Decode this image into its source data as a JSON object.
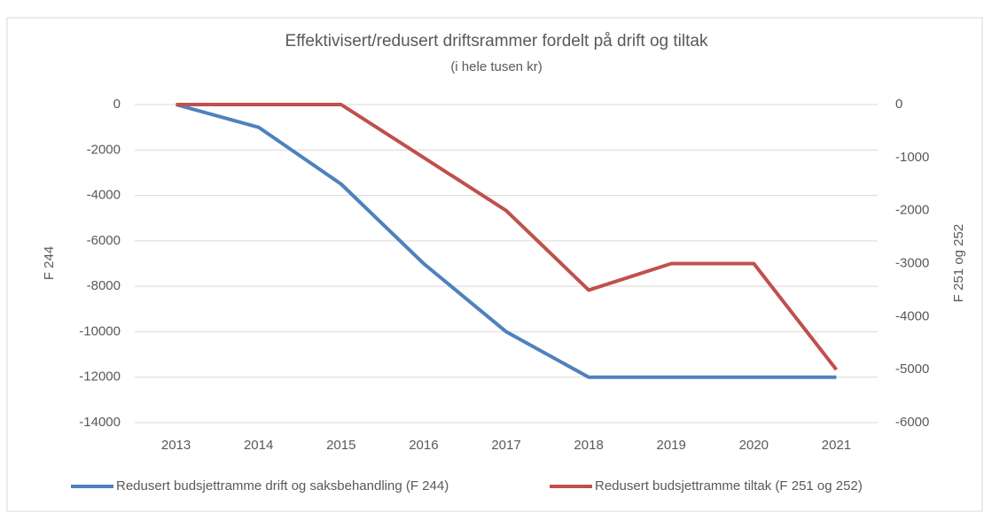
{
  "chart_data": {
    "type": "line",
    "title": "Effektivisert/redusert driftsrammer fordelt på drift og tiltak",
    "subtitle": "(i hele tusen kr)",
    "ylabel": "F 244",
    "y2label": "F 251 og 252",
    "categories": [
      "2013",
      "2014",
      "2015",
      "2016",
      "2017",
      "2018",
      "2019",
      "2020",
      "2021"
    ],
    "series": [
      {
        "name": "Redusert budsjettramme drift og saksbehandling (F 244)",
        "color": "#4f81bd",
        "values": [
          0,
          -1000,
          -3500,
          -7000,
          -10000,
          -12000,
          -12000,
          -12000,
          -12000
        ]
      },
      {
        "name": "Redusert budsjettramme tiltak (F 251 og 252)",
        "color": "#c0504d",
        "axis": "y2",
        "values": [
          0,
          0,
          0,
          -1000,
          -2000,
          -3500,
          -3000,
          -3000,
          -5000
        ]
      }
    ],
    "ylim": [
      -14000,
      0
    ],
    "yticks": [
      0,
      -2000,
      -4000,
      -6000,
      -8000,
      -10000,
      -12000,
      -14000
    ],
    "y2lim": [
      -6000,
      0
    ],
    "y2ticks": [
      0,
      -1000,
      -2000,
      -3000,
      -4000,
      -5000,
      -6000
    ],
    "grid": true,
    "legend": "bottom"
  }
}
